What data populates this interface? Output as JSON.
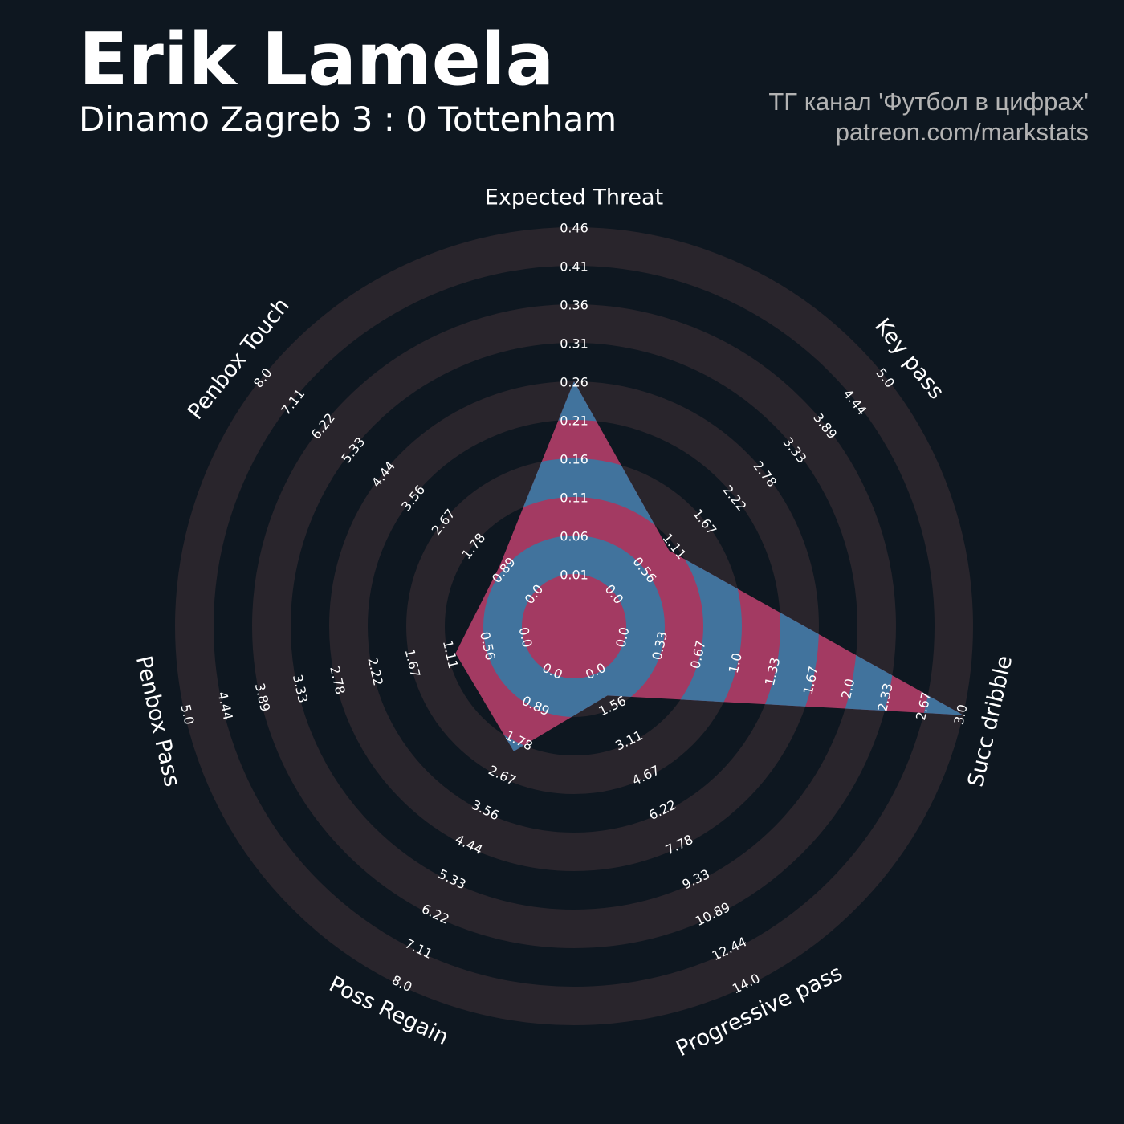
{
  "chart_data": {
    "type": "radar",
    "title": "Erik Lamela",
    "subtitle": "Dinamo Zagreb 3 : 0 Tottenham",
    "annotations": [
      "ТГ канал 'Футбол в цифрах'",
      "patreon.com/markstats"
    ],
    "background": "#0e1720",
    "ring_color": "#29252c",
    "color": "#a33a62",
    "ring_overlay_color": "#41739d",
    "axes": [
      {
        "name": "Expected Threat",
        "value": 0.26,
        "lim": [
          0.01,
          0.46
        ],
        "ticks": [
          0.01,
          0.06,
          0.11,
          0.16,
          0.21,
          0.26,
          0.31,
          0.36,
          0.41,
          0.46
        ]
      },
      {
        "name": "Key pass",
        "value": 1,
        "lim": [
          0,
          5
        ],
        "ticks": [
          {
            "value": 0,
            "label": "0.0"
          },
          0.56,
          1.11,
          1.67,
          2.22,
          2.78,
          3.33,
          3.89,
          4.44,
          {
            "value": 5,
            "label": "5.0"
          }
        ]
      },
      {
        "name": "Succ dribble",
        "value": 3,
        "lim": [
          0,
          3
        ],
        "ticks": [
          {
            "value": 0,
            "label": "0.0"
          },
          0.33,
          0.67,
          {
            "value": 1,
            "label": "1.0"
          },
          1.33,
          1.67,
          {
            "value": 2,
            "label": "2.0"
          },
          2.33,
          2.67,
          {
            "value": 3,
            "label": "3.0"
          }
        ]
      },
      {
        "name": "Progressive pass",
        "value": 1,
        "lim": [
          0,
          14
        ],
        "ticks": [
          {
            "value": 0,
            "label": "0.0"
          },
          1.56,
          3.11,
          4.67,
          6.22,
          7.78,
          9.33,
          10.89,
          12.44,
          {
            "value": 14,
            "label": "14.0"
          }
        ]
      },
      {
        "name": "Poss Regain",
        "value": 2,
        "lim": [
          0,
          8
        ],
        "ticks": [
          {
            "value": 0,
            "label": "0.0"
          },
          0.89,
          1.78,
          2.67,
          3.56,
          4.44,
          5.33,
          6.22,
          7.11,
          {
            "value": 8,
            "label": "8.0"
          }
        ]
      },
      {
        "name": "Penbox Pass",
        "value": 1,
        "lim": [
          0,
          5
        ],
        "ticks": [
          {
            "value": 0,
            "label": "0.0"
          },
          0.56,
          1.11,
          1.67,
          2.22,
          2.78,
          3.33,
          3.89,
          4.44,
          {
            "value": 5,
            "label": "5.0"
          }
        ]
      },
      {
        "name": "Penbox Touch",
        "value": 1,
        "lim": [
          0,
          8
        ],
        "ticks": [
          {
            "value": 0,
            "label": "0.0"
          },
          0.89,
          1.78,
          2.67,
          3.56,
          4.44,
          5.33,
          6.22,
          7.11,
          {
            "value": 8,
            "label": "8.0"
          }
        ]
      }
    ]
  }
}
